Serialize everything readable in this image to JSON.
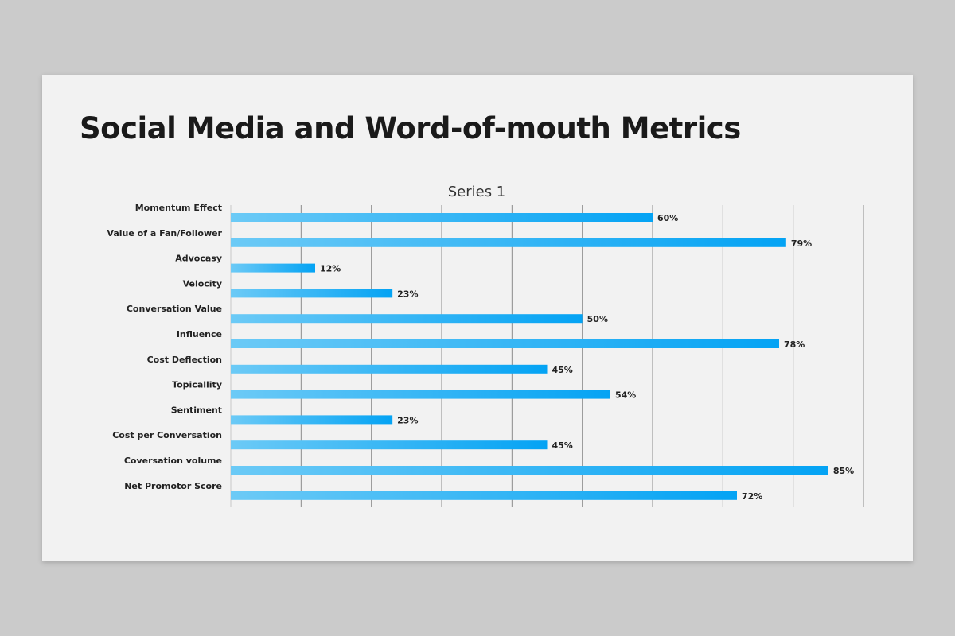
{
  "slide": {
    "title": "Social Media and Word-of-mouth Metrics"
  },
  "chart_data": {
    "type": "bar",
    "orientation": "horizontal",
    "chart_title": "Series 1",
    "categories": [
      "Momentum Effect",
      "Value of a Fan/Follower",
      "Advocasy",
      "Velocity",
      "Conversation Value",
      "Influence",
      "Cost Deflection",
      "Topicallity",
      "Sentiment",
      "Cost per Conversation",
      "Coversation volume",
      "Net Promotor Score"
    ],
    "series": [
      {
        "name": "Series 1",
        "values": [
          60,
          79,
          12,
          23,
          50,
          78,
          45,
          54,
          23,
          45,
          85,
          72
        ]
      }
    ],
    "value_labels": [
      "60%",
      "79%",
      "12%",
      "23%",
      "50%",
      "78%",
      "45%",
      "54%",
      "23%",
      "45%",
      "85%",
      "72%"
    ],
    "xlim": [
      0,
      90
    ],
    "grid": true,
    "colors": {
      "bar_start": "#6ccaf6",
      "bar_end": "#04a3f4",
      "grid": "#8c8c8c"
    }
  }
}
